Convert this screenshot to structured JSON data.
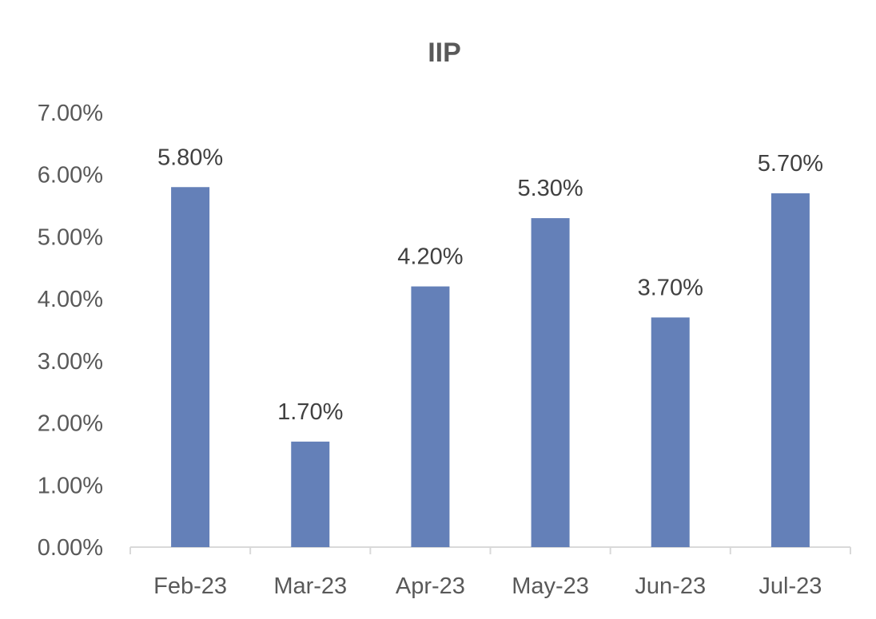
{
  "chart_data": {
    "type": "bar",
    "title": "IIP",
    "xlabel": "",
    "ylabel": "",
    "categories": [
      "Feb-23",
      "Mar-23",
      "Apr-23",
      "May-23",
      "Jun-23",
      "Jul-23"
    ],
    "series": [
      {
        "values": [
          5.8,
          1.7,
          4.2,
          5.3,
          3.7,
          5.7
        ]
      }
    ],
    "data_labels": [
      "5.80%",
      "1.70%",
      "4.20%",
      "5.30%",
      "3.70%",
      "5.70%"
    ],
    "y_ticks": [
      "0.00%",
      "1.00%",
      "2.00%",
      "3.00%",
      "4.00%",
      "5.00%",
      "6.00%",
      "7.00%"
    ],
    "ylim": [
      0,
      7
    ],
    "unit": "%",
    "grid": false,
    "legend": "none",
    "colors": {
      "bar": "#6480b8",
      "axis": "#d9d9d9",
      "text": "#595959"
    }
  }
}
